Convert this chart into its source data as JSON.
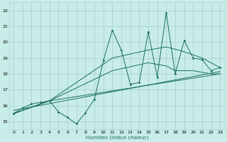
{
  "xlabel": "Humidex (Indice chaleur)",
  "ylabel": "",
  "bg_color": "#c8ece8",
  "grid_color": "#a8d4d0",
  "line_color": "#1a6e64",
  "xlim": [
    -0.5,
    23.5
  ],
  "ylim": [
    14.5,
    22.5
  ],
  "xticks": [
    0,
    1,
    2,
    3,
    4,
    5,
    6,
    7,
    8,
    9,
    10,
    11,
    12,
    13,
    14,
    15,
    16,
    17,
    18,
    19,
    20,
    21,
    22,
    23
  ],
  "yticks": [
    15,
    16,
    17,
    18,
    19,
    20,
    21,
    22
  ],
  "spiky_x": [
    0,
    1,
    2,
    3,
    4,
    5,
    6,
    7,
    8,
    9,
    10,
    11,
    12,
    13,
    14,
    15,
    16,
    17,
    18,
    19,
    20,
    21,
    22,
    23
  ],
  "spiky_y": [
    15.5,
    15.85,
    16.1,
    16.2,
    16.3,
    15.6,
    15.25,
    14.85,
    15.55,
    16.4,
    18.85,
    20.75,
    19.5,
    17.35,
    17.45,
    20.65,
    17.8,
    21.85,
    18.0,
    20.1,
    19.0,
    18.9,
    18.2,
    18.4
  ],
  "trend1_x": [
    0,
    4,
    11,
    15,
    17,
    19,
    20,
    21,
    22,
    23
  ],
  "trend1_y": [
    15.5,
    16.3,
    19.0,
    19.5,
    19.7,
    19.4,
    19.2,
    19.0,
    18.7,
    18.4
  ],
  "trend2_x": [
    0,
    4,
    11,
    15,
    17,
    18,
    19,
    20,
    21,
    22,
    23
  ],
  "trend2_y": [
    15.5,
    16.3,
    18.2,
    18.7,
    18.5,
    18.2,
    18.2,
    18.2,
    18.1,
    18.0,
    18.0
  ],
  "trend3_x": [
    0,
    4,
    23
  ],
  "trend3_y": [
    15.5,
    16.3,
    18.0
  ],
  "trend4_x": [
    0,
    23
  ],
  "trend4_y": [
    15.7,
    18.15
  ]
}
